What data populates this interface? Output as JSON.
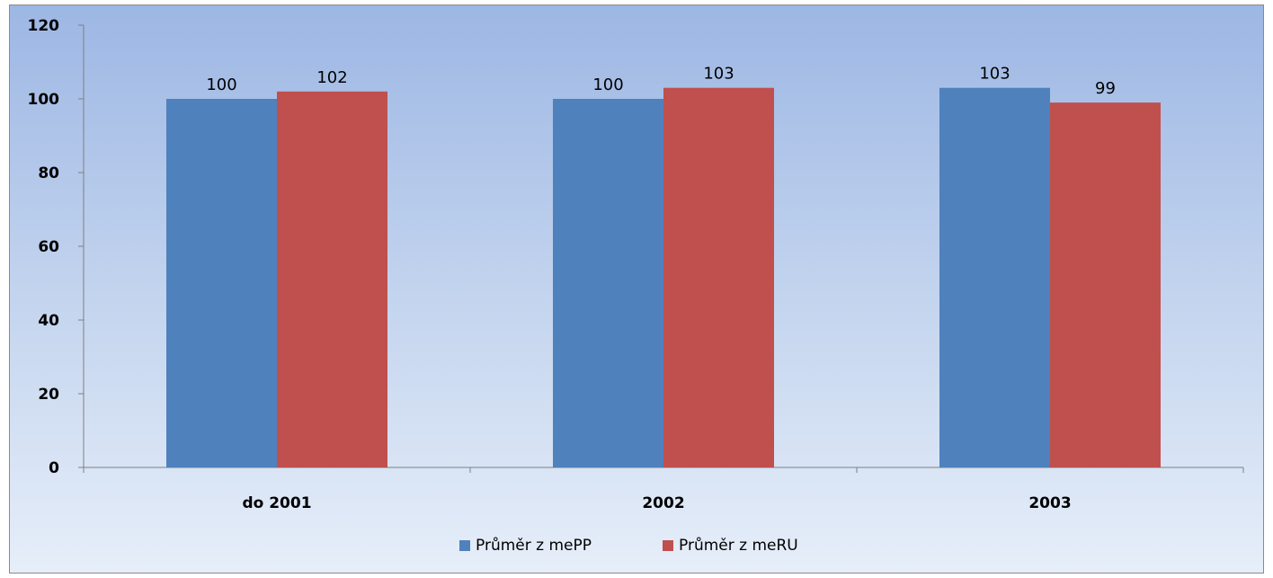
{
  "chart_data": {
    "type": "bar",
    "categories": [
      "do 2001",
      "2002",
      "2003"
    ],
    "series": [
      {
        "name": "Průměr z mePP",
        "values": [
          100,
          100,
          103
        ],
        "labels": [
          "100",
          "100",
          "103"
        ],
        "color": "#4f81bd"
      },
      {
        "name": "Průměr z meRU",
        "values": [
          102,
          103,
          99
        ],
        "labels": [
          "102",
          "103",
          "99"
        ],
        "color": "#c0504d"
      }
    ],
    "y_ticks": [
      "0",
      "20",
      "40",
      "60",
      "80",
      "100",
      "120"
    ],
    "ylim": [
      0,
      120
    ],
    "grid": false,
    "legend": "bottom"
  }
}
